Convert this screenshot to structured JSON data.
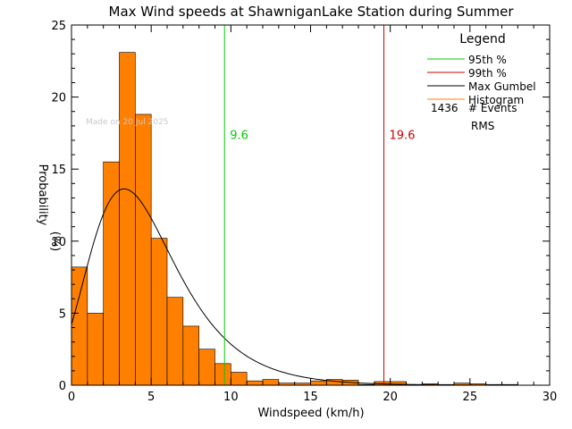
{
  "chart_data": {
    "type": "bar",
    "title": "Max Wind speeds at ShawniganLake Station during Summer",
    "xlabel": "Windspeed (km/h)",
    "ylabel_line1": "Probability",
    "ylabel_line2": "(%)",
    "xlim": [
      0,
      30
    ],
    "ylim": [
      0,
      25
    ],
    "xticks": [
      0,
      5,
      10,
      15,
      20,
      25,
      30
    ],
    "yticks": [
      0,
      5,
      10,
      15,
      20,
      25
    ],
    "bin_width": 1,
    "histogram": {
      "name": "Histogram",
      "color": "#ff7f00",
      "bins": [
        {
          "x": 0,
          "value": 8.2
        },
        {
          "x": 1,
          "value": 5.0
        },
        {
          "x": 2,
          "value": 15.5
        },
        {
          "x": 3,
          "value": 23.1
        },
        {
          "x": 4,
          "value": 18.8
        },
        {
          "x": 5,
          "value": 10.2
        },
        {
          "x": 6,
          "value": 6.1
        },
        {
          "x": 7,
          "value": 4.1
        },
        {
          "x": 8,
          "value": 2.5
        },
        {
          "x": 9,
          "value": 1.5
        },
        {
          "x": 10,
          "value": 0.9
        },
        {
          "x": 11,
          "value": 0.3
        },
        {
          "x": 12,
          "value": 0.4
        },
        {
          "x": 13,
          "value": 0.15
        },
        {
          "x": 14,
          "value": 0.15
        },
        {
          "x": 15,
          "value": 0.3
        },
        {
          "x": 16,
          "value": 0.4
        },
        {
          "x": 17,
          "value": 0.35
        },
        {
          "x": 18,
          "value": 0.05
        },
        {
          "x": 19,
          "value": 0.25
        },
        {
          "x": 20,
          "value": 0.25
        },
        {
          "x": 21,
          "value": 0.05
        },
        {
          "x": 22,
          "value": 0.1
        },
        {
          "x": 23,
          "value": 0.05
        },
        {
          "x": 24,
          "value": 0.15
        },
        {
          "x": 25,
          "value": 0.1
        },
        {
          "x": 26,
          "value": 0.05
        },
        {
          "x": 27,
          "value": 0.05
        }
      ]
    },
    "gumbel": {
      "name": "Max Gumbel",
      "color": "#000000",
      "mu": 3.3,
      "beta": 2.7,
      "x_start": 0,
      "x_end": 28
    },
    "percentiles": [
      {
        "name": "95th %",
        "value": 9.6,
        "label": "9.6",
        "color": "#00cc00"
      },
      {
        "name": "99th %",
        "value": 19.6,
        "label": "19.6",
        "color": "#cc0000"
      }
    ],
    "legend": {
      "title": "Legend",
      "placement": "top-right",
      "entries": [
        {
          "label": "95th %",
          "color": "#00cc00"
        },
        {
          "label": "99th %",
          "color": "#cc0000"
        },
        {
          "label": "Max Gumbel",
          "color": "#000000"
        },
        {
          "label": "Histogram",
          "color": "#ff7f00"
        }
      ],
      "events_count": "1436",
      "events_label": "# Events",
      "rms_label": "RMS"
    },
    "watermark": "Made on 20 Jul 2025",
    "grid": false
  }
}
